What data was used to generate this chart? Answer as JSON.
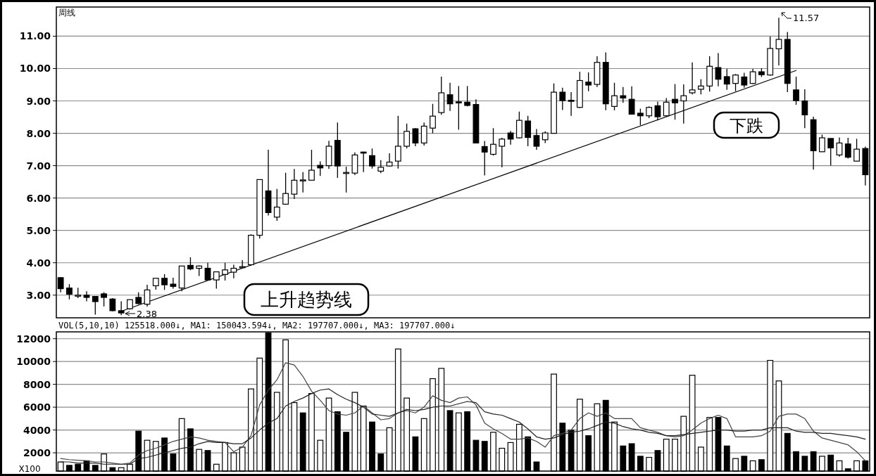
{
  "chart_data": [
    {
      "type": "candlestick",
      "title": "周线",
      "tick_labels": "y",
      "grid": "y",
      "categories": [
        null,
        null,
        null,
        null,
        null,
        null,
        null,
        null,
        null,
        null,
        null,
        null,
        null,
        null,
        null,
        null,
        null,
        null,
        null,
        null,
        null,
        null,
        null,
        null,
        null,
        null,
        null,
        null,
        null,
        null,
        null,
        null,
        null,
        null,
        null,
        null,
        null,
        null,
        null,
        null,
        null,
        null,
        null,
        null,
        null,
        null,
        null,
        null,
        null,
        null,
        null,
        null,
        null,
        null,
        null,
        null,
        null,
        null,
        null,
        null,
        null,
        null,
        null,
        null,
        null,
        null,
        null,
        null,
        null,
        null,
        null,
        null,
        null,
        null,
        null,
        null,
        null,
        null,
        null,
        null,
        null,
        null,
        null,
        null,
        null,
        null,
        null,
        null,
        null,
        null,
        null,
        null,
        null,
        null
      ],
      "ohlc": [
        [
          3.54,
          3.56,
          3.09,
          3.2
        ],
        [
          3.22,
          3.34,
          2.87,
          3.03
        ],
        [
          3.0,
          3.23,
          2.91,
          3.0
        ],
        [
          3.0,
          3.12,
          2.81,
          2.93
        ],
        [
          2.96,
          2.96,
          2.4,
          2.8
        ],
        [
          3.04,
          3.09,
          2.65,
          2.93
        ],
        [
          2.88,
          2.91,
          2.5,
          2.52
        ],
        [
          2.52,
          2.81,
          2.38,
          2.45
        ],
        [
          2.58,
          2.86,
          2.55,
          2.86
        ],
        [
          2.93,
          3.09,
          2.72,
          2.74
        ],
        [
          2.72,
          3.32,
          2.65,
          3.16
        ],
        [
          3.29,
          3.52,
          3.17,
          3.52
        ],
        [
          3.52,
          3.65,
          3.16,
          3.32
        ],
        [
          3.34,
          3.54,
          3.2,
          3.27
        ],
        [
          3.22,
          3.9,
          3.12,
          3.9
        ],
        [
          3.92,
          4.17,
          3.77,
          3.81
        ],
        [
          3.83,
          3.92,
          3.59,
          3.9
        ],
        [
          3.83,
          4.0,
          3.47,
          3.47
        ],
        [
          3.47,
          3.72,
          3.2,
          3.72
        ],
        [
          3.64,
          4.0,
          3.45,
          3.78
        ],
        [
          3.71,
          3.94,
          3.52,
          3.83
        ],
        [
          3.86,
          4.08,
          3.86,
          3.88
        ],
        [
          3.94,
          4.88,
          3.92,
          4.85
        ],
        [
          4.85,
          6.57,
          4.75,
          6.57
        ],
        [
          6.22,
          7.49,
          5.46,
          5.55
        ],
        [
          5.41,
          6.28,
          5.3,
          5.72
        ],
        [
          5.81,
          6.78,
          5.79,
          6.14
        ],
        [
          6.12,
          6.9,
          5.97,
          6.55
        ],
        [
          6.55,
          6.8,
          6.17,
          6.56
        ],
        [
          6.55,
          7.49,
          6.54,
          6.86
        ],
        [
          7.01,
          7.13,
          6.68,
          6.93
        ],
        [
          7.0,
          7.77,
          6.9,
          7.6
        ],
        [
          7.78,
          8.33,
          6.62,
          6.99
        ],
        [
          6.79,
          6.97,
          6.17,
          6.79
        ],
        [
          6.77,
          7.41,
          6.71,
          7.33
        ],
        [
          7.42,
          7.43,
          6.8,
          7.39
        ],
        [
          7.31,
          7.53,
          6.91,
          6.99
        ],
        [
          6.83,
          7.17,
          6.77,
          6.95
        ],
        [
          6.99,
          7.38,
          6.97,
          7.11
        ],
        [
          7.14,
          8.54,
          6.91,
          7.6
        ],
        [
          7.6,
          8.3,
          7.53,
          8.06
        ],
        [
          8.14,
          8.16,
          7.6,
          7.7
        ],
        [
          7.7,
          8.33,
          7.62,
          8.22
        ],
        [
          8.16,
          8.91,
          8.0,
          8.53
        ],
        [
          8.64,
          9.75,
          8.57,
          9.25
        ],
        [
          9.19,
          9.56,
          8.69,
          8.91
        ],
        [
          8.97,
          9.46,
          8.11,
          8.96
        ],
        [
          8.96,
          9.46,
          8.83,
          8.86
        ],
        [
          8.89,
          9.05,
          7.69,
          7.7
        ],
        [
          7.59,
          7.76,
          6.7,
          7.42
        ],
        [
          7.35,
          8.16,
          7.31,
          7.66
        ],
        [
          7.6,
          7.86,
          6.95,
          7.82
        ],
        [
          8.01,
          8.07,
          7.65,
          7.82
        ],
        [
          7.86,
          8.67,
          7.84,
          8.4
        ],
        [
          8.38,
          8.54,
          7.6,
          7.87
        ],
        [
          7.93,
          8.13,
          7.49,
          7.6
        ],
        [
          7.8,
          8.06,
          7.7,
          8.01
        ],
        [
          8.0,
          9.54,
          7.99,
          9.27
        ],
        [
          9.27,
          9.41,
          8.72,
          9.01
        ],
        [
          9.02,
          9.27,
          8.54,
          9.01
        ],
        [
          8.8,
          9.9,
          8.78,
          9.63
        ],
        [
          9.58,
          9.88,
          9.3,
          9.49
        ],
        [
          9.51,
          10.38,
          9.43,
          10.19
        ],
        [
          10.19,
          10.5,
          8.71,
          8.91
        ],
        [
          8.83,
          9.56,
          8.71,
          9.16
        ],
        [
          9.16,
          9.43,
          8.94,
          9.09
        ],
        [
          9.05,
          9.45,
          8.59,
          8.59
        ],
        [
          8.62,
          8.76,
          8.25,
          8.54
        ],
        [
          8.54,
          8.83,
          8.47,
          8.8
        ],
        [
          8.85,
          8.98,
          8.4,
          8.51
        ],
        [
          8.54,
          9.09,
          8.52,
          8.96
        ],
        [
          9.05,
          9.52,
          8.42,
          8.94
        ],
        [
          9.0,
          9.51,
          8.3,
          9.16
        ],
        [
          9.25,
          10.19,
          9.2,
          9.34
        ],
        [
          9.36,
          9.67,
          9.2,
          9.46
        ],
        [
          9.46,
          10.38,
          9.29,
          10.07
        ],
        [
          10.03,
          10.48,
          9.45,
          9.67
        ],
        [
          9.75,
          9.99,
          9.34,
          9.52
        ],
        [
          9.54,
          9.83,
          9.3,
          9.8
        ],
        [
          9.74,
          9.87,
          9.41,
          9.49
        ],
        [
          9.54,
          9.99,
          9.52,
          9.9
        ],
        [
          9.9,
          10.01,
          9.74,
          9.81
        ],
        [
          9.8,
          10.99,
          9.78,
          10.62
        ],
        [
          10.61,
          11.57,
          10.1,
          10.9
        ],
        [
          10.9,
          11.13,
          9.27,
          9.54
        ],
        [
          9.34,
          9.75,
          8.88,
          9.01
        ],
        [
          9.0,
          9.36,
          8.16,
          8.57
        ],
        [
          8.42,
          8.51,
          6.88,
          7.46
        ],
        [
          7.43,
          7.96,
          7.42,
          7.86
        ],
        [
          7.84,
          7.84,
          7.0,
          7.55
        ],
        [
          7.33,
          7.87,
          7.28,
          7.7
        ],
        [
          7.67,
          7.86,
          7.22,
          7.26
        ],
        [
          7.14,
          7.83,
          7.13,
          7.51
        ],
        [
          7.53,
          7.59,
          6.39,
          6.72
        ]
      ],
      "series": [
        {
          "type": "line",
          "values": [
            null,
            null,
            null,
            null,
            null,
            null,
            null,
            2.5,
            null,
            null,
            null,
            null,
            null,
            null,
            null,
            null,
            null,
            null,
            null,
            null,
            null,
            null,
            null,
            null,
            null,
            null,
            null,
            null,
            null,
            null,
            null,
            null,
            null,
            null,
            null,
            null,
            null,
            null,
            null,
            null,
            null,
            null,
            null,
            null,
            null,
            null,
            null,
            null,
            null,
            null,
            null,
            null,
            null,
            null,
            null,
            null,
            null,
            null,
            null,
            null,
            null,
            null,
            null,
            null,
            null,
            null,
            null,
            null,
            null,
            null,
            null,
            null,
            null,
            null,
            null,
            null,
            null,
            null,
            null,
            null,
            null,
            null,
            null,
            null,
            null,
            9.94,
            null,
            null,
            null,
            null,
            null,
            null,
            null,
            null
          ],
          "color": "#000000"
        }
      ],
      "ylim": [
        2.3,
        11.9
      ],
      "yticks": [
        {
          "value": 3,
          "label": "3.00"
        },
        {
          "value": 4,
          "label": "4.00"
        },
        {
          "value": 5,
          "label": "5.00"
        },
        {
          "value": 6,
          "label": "6.00"
        },
        {
          "value": 7,
          "label": "7.00"
        },
        {
          "value": 8,
          "label": "8.00"
        },
        {
          "value": 9,
          "label": "9.00"
        },
        {
          "value": 10,
          "label": "10.00"
        },
        {
          "value": 11,
          "label": "11.00"
        }
      ],
      "annotations": [
        "2.38",
        "11.57",
        "上升趋势线",
        "下跌"
      ]
    },
    {
      "type": "bar",
      "title": "VOL(5,10,10) 125518.000↓, MA1: 150043.594↓, MA2: 197707.000↓, MA3: 197707.000↓",
      "tick_labels": "y",
      "grid": "y",
      "categories": [
        null,
        null,
        null,
        null,
        null,
        null,
        null,
        null,
        null,
        null,
        null,
        null,
        null,
        null,
        null,
        null,
        null,
        null,
        null,
        null,
        null,
        null,
        null,
        null,
        null,
        null,
        null,
        null,
        null,
        null,
        null,
        null,
        null,
        null,
        null,
        null,
        null,
        null,
        null,
        null,
        null,
        null,
        null,
        null,
        null,
        null,
        null,
        null,
        null,
        null,
        null,
        null,
        null,
        null,
        null,
        null,
        null,
        null,
        null,
        null,
        null,
        null,
        null,
        null,
        null,
        null,
        null,
        null,
        null,
        null,
        null,
        null,
        null,
        null,
        null,
        null,
        null,
        null,
        null,
        null,
        null,
        null,
        null,
        null,
        null,
        null,
        null,
        null,
        null,
        null,
        null,
        null,
        null,
        null
      ],
      "series": [
        {
          "values": [
            1200,
            900,
            1000,
            1300,
            900,
            1900,
            700,
            700,
            1000,
            3900,
            3100,
            3000,
            3300,
            1900,
            5000,
            4100,
            2300,
            2200,
            1000,
            2900,
            2000,
            2500,
            7600,
            10300,
            12500,
            7300,
            11900,
            6400,
            5500,
            7200,
            3100,
            6800,
            5600,
            3800,
            7300,
            6100,
            4700,
            1900,
            4200,
            11100,
            6800,
            3400,
            5000,
            8500,
            9400,
            5700,
            5500,
            5600,
            3100,
            3000,
            3800,
            2400,
            2900,
            4500,
            3400,
            1200,
            null,
            8900,
            4600,
            4000,
            6700,
            3500,
            6300,
            6600,
            4700,
            2600,
            2800,
            1700,
            1600,
            2200,
            3200,
            3200,
            5200,
            8800,
            2500,
            5100,
            5100,
            2600,
            1500,
            1700,
            1300,
            1400,
            10100,
            8300,
            3700,
            2100,
            1700,
            2100,
            1700,
            1800,
            1300,
            600,
            1300,
            1300
          ],
          "colors": [
            "#ffffff",
            "#000000",
            "#000000",
            "#000000",
            "#000000",
            "#ffffff",
            "#000000",
            "#ffffff",
            "#ffffff",
            "#000000",
            "#ffffff",
            "#ffffff",
            "#000000",
            "#000000",
            "#ffffff",
            "#000000",
            "#ffffff",
            "#000000",
            "#ffffff",
            "#ffffff",
            "#ffffff",
            "#ffffff",
            "#ffffff",
            "#ffffff",
            "#000000",
            "#ffffff",
            "#ffffff",
            "#ffffff",
            "#000000",
            "#ffffff",
            "#ffffff",
            "#ffffff",
            "#000000",
            "#000000",
            "#ffffff",
            "#ffffff",
            "#000000",
            "#000000",
            "#ffffff",
            "#ffffff",
            "#ffffff",
            "#000000",
            "#ffffff",
            "#ffffff",
            "#ffffff",
            "#000000",
            "#ffffff",
            "#000000",
            "#000000",
            "#000000",
            "#ffffff",
            "#ffffff",
            "#ffffff",
            "#ffffff",
            "#000000",
            "#000000",
            null,
            "#ffffff",
            "#000000",
            "#000000",
            "#ffffff",
            "#000000",
            "#ffffff",
            "#000000",
            "#ffffff",
            "#000000",
            "#000000",
            "#000000",
            "#ffffff",
            "#000000",
            "#ffffff",
            "#ffffff",
            "#ffffff",
            "#ffffff",
            "#ffffff",
            "#ffffff",
            "#000000",
            "#000000",
            "#ffffff",
            "#000000",
            "#ffffff",
            "#000000",
            "#ffffff",
            "#ffffff",
            "#000000",
            "#000000",
            "#000000",
            "#000000",
            "#ffffff",
            "#000000",
            "#ffffff",
            "#000000",
            "#ffffff",
            "#000000"
          ]
        },
        {
          "type": "line",
          "color": "#444444",
          "values": [
            1500,
            1400,
            1350,
            1300,
            1200,
            1200,
            1100,
            1000,
            1100,
            1800,
            2200,
            2400,
            2700,
            3000,
            3200,
            3400,
            3300,
            3100,
            3000,
            2900,
            2100,
            2500,
            3500,
            6200,
            7500,
            8400,
            9900,
            9700,
            8700,
            7400,
            6600,
            5700,
            5400,
            5300,
            5500,
            6100,
            5500,
            4900,
            5000,
            5500,
            5700,
            5500,
            6000,
            7000,
            6600,
            6400,
            6800,
            6900,
            6200,
            4600,
            4100,
            3700,
            3200,
            3200,
            3300,
            3000,
            2500,
            3500,
            3700,
            4000,
            5000,
            5500,
            5200,
            5500,
            5000,
            5000,
            5000,
            4200,
            4000,
            3800,
            3500,
            3400,
            3500,
            4000,
            4600,
            5000,
            5300,
            5000,
            3400,
            3400,
            3400,
            3500,
            3900,
            5200,
            5400,
            5400,
            5000,
            3900,
            3300,
            3100,
            2900,
            2700,
            2100,
            1300
          ]
        },
        {
          "type": "line",
          "color": "#222222",
          "values": [
            1200,
            1200,
            1100,
            1100,
            1100,
            1000,
            1000,
            1000,
            1000,
            1500,
            1600,
            1800,
            2000,
            2200,
            2400,
            2500,
            2800,
            3000,
            2900,
            2900,
            2800,
            2800,
            3300,
            4000,
            4600,
            5000,
            6100,
            6500,
            6800,
            7200,
            7500,
            7600,
            7100,
            6700,
            6400,
            6000,
            5400,
            5300,
            5200,
            5500,
            5800,
            5700,
            5800,
            6000,
            6100,
            6100,
            6300,
            6500,
            6400,
            5600,
            5400,
            5300,
            5000,
            4700,
            4100,
            3400,
            3200,
            3300,
            3600,
            3800,
            3900,
            4100,
            4400,
            4700,
            4600,
            4300,
            4100,
            4000,
            3800,
            3700,
            3500,
            3500,
            3600,
            3700,
            3800,
            3900,
            4000,
            4000,
            3900,
            3900,
            4000,
            4000,
            4200,
            4200,
            4200,
            3900,
            3800,
            3800,
            3700,
            3700,
            3600,
            3500,
            3400,
            3200
          ]
        }
      ],
      "ylim": [
        400,
        12600
      ],
      "yticks": [
        2000,
        4000,
        6000,
        8000,
        10000,
        12000
      ],
      "annotations": [
        "X100"
      ]
    }
  ]
}
